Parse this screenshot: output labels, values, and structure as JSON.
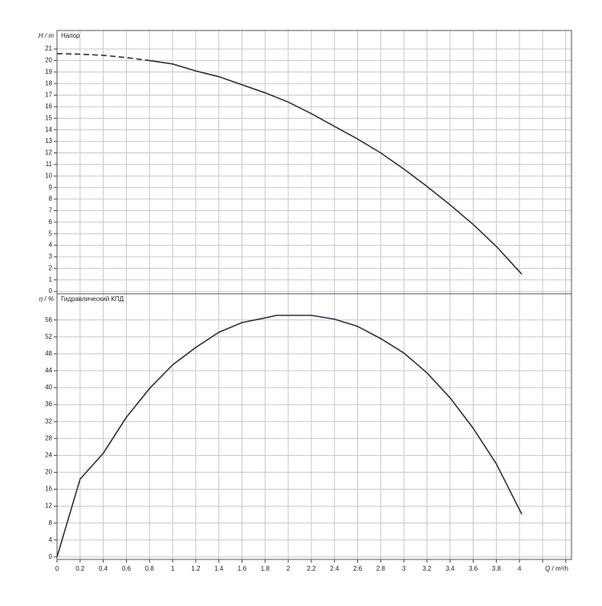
{
  "chart_data": [
    {
      "type": "line",
      "title": "Напор",
      "ylabel": "H / m",
      "xlim": [
        0,
        4.45
      ],
      "xticks": [
        0,
        0.2,
        0.4,
        0.6,
        0.8,
        1,
        1.2,
        1.4,
        1.6,
        1.8,
        2,
        2.2,
        2.4,
        2.6,
        2.8,
        3,
        3.2,
        3.4,
        3.6,
        3.8,
        4,
        4.2,
        4.4
      ],
      "ylim": [
        -0.2,
        22.6
      ],
      "yticks": [
        0,
        1,
        2,
        3,
        4,
        5,
        6,
        7,
        8,
        9,
        10,
        11,
        12,
        13,
        14,
        15,
        16,
        17,
        18,
        19,
        20,
        21
      ],
      "grid": true,
      "series": [
        {
          "color": "#2d3349",
          "dashed": true,
          "x": [
            0,
            0.2,
            0.4,
            0.6,
            0.8
          ],
          "values": [
            20.6,
            20.55,
            20.45,
            20.25,
            20.0
          ]
        },
        {
          "color": "#2d3349",
          "dashed": false,
          "x": [
            0.8,
            1,
            1.2,
            1.4,
            1.6,
            1.8,
            2,
            2.2,
            2.4,
            2.6,
            2.8,
            3,
            3.2,
            3.4,
            3.6,
            3.8,
            4.02
          ],
          "values": [
            20.0,
            19.7,
            19.1,
            18.6,
            17.9,
            17.2,
            16.4,
            15.4,
            14.3,
            13.2,
            12.0,
            10.6,
            9.1,
            7.5,
            5.8,
            3.9,
            1.5
          ]
        }
      ]
    },
    {
      "type": "line",
      "title": "Гидравлический КПД",
      "ylabel": "η / %",
      "xlabel": "Q / m³/h",
      "xlim": [
        0,
        4.45
      ],
      "xticks": [
        0,
        0.2,
        0.4,
        0.6,
        0.8,
        1,
        1.2,
        1.4,
        1.6,
        1.8,
        2,
        2.2,
        2.4,
        2.6,
        2.8,
        3,
        3.2,
        3.4,
        3.6,
        3.8,
        4,
        4.2,
        4.4
      ],
      "xticklabels_until": 4,
      "ylim": [
        -0.6,
        62.2
      ],
      "yticks": [
        0,
        4,
        8,
        12,
        16,
        20,
        24,
        28,
        32,
        36,
        40,
        44,
        48,
        52,
        56
      ],
      "grid": true,
      "series": [
        {
          "color": "#2d3349",
          "dashed": false,
          "x": [
            0,
            0.2,
            0.4,
            0.6,
            0.8,
            1,
            1.2,
            1.4,
            1.6,
            1.8,
            1.9,
            2.2,
            2.4,
            2.6,
            2.8,
            3,
            3.2,
            3.4,
            3.6,
            3.8,
            4.02
          ],
          "values": [
            0,
            18.4,
            24.5,
            33,
            39.8,
            45.4,
            49.5,
            53.1,
            55.4,
            56.5,
            57.1,
            57.1,
            56.2,
            54.5,
            51.6,
            48.2,
            43.5,
            37.6,
            30.4,
            22,
            10.1
          ]
        }
      ]
    }
  ]
}
